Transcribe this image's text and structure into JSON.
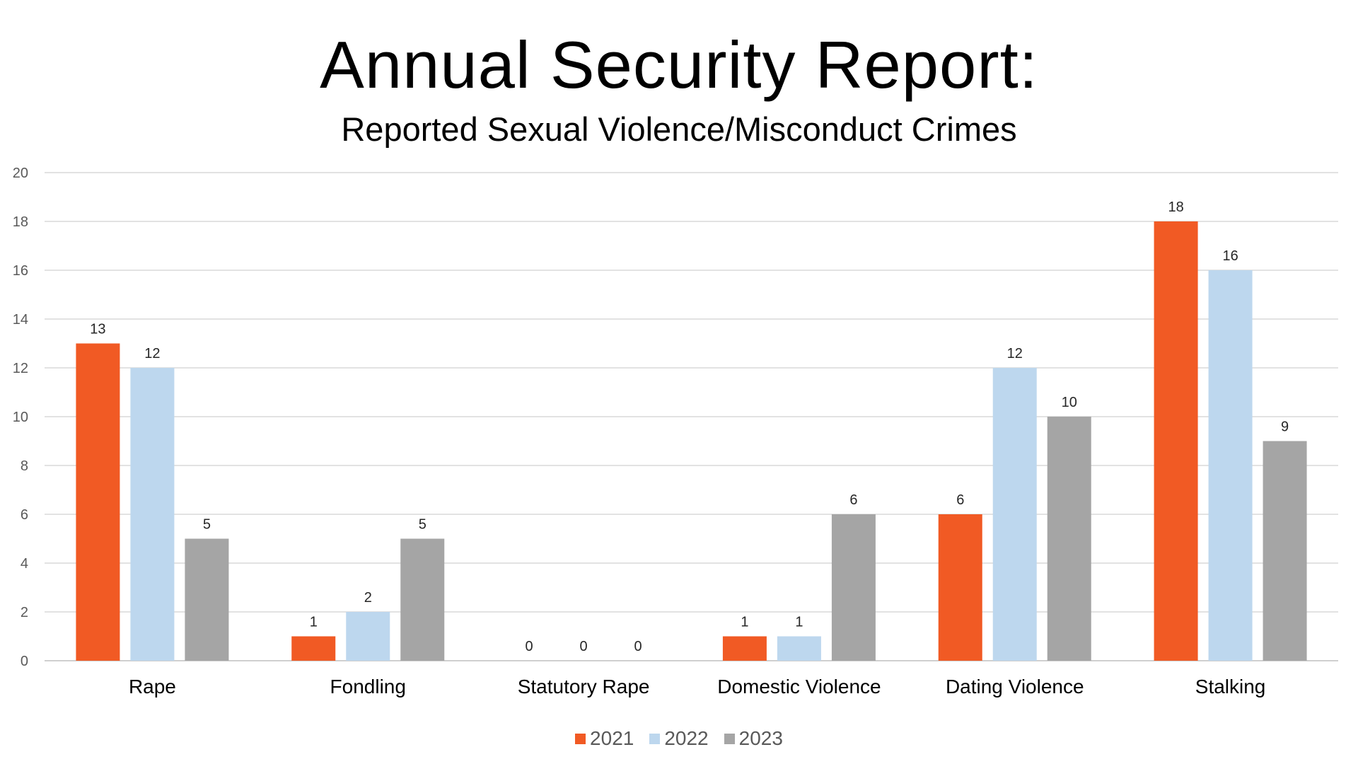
{
  "chart_data": {
    "type": "bar",
    "title": "Annual Security Report:",
    "subtitle": "Reported Sexual Violence/Misconduct Crimes",
    "categories": [
      "Rape",
      "Fondling",
      "Statutory Rape",
      "Domestic Violence",
      "Dating Violence",
      "Stalking"
    ],
    "series": [
      {
        "name": "2021",
        "color": "#F15A24",
        "values": [
          13,
          1,
          0,
          1,
          6,
          18
        ]
      },
      {
        "name": "2022",
        "color": "#BDD7EE",
        "values": [
          12,
          2,
          0,
          1,
          12,
          16
        ]
      },
      {
        "name": "2023",
        "color": "#A5A5A5",
        "values": [
          5,
          5,
          0,
          6,
          10,
          9
        ]
      }
    ],
    "ylim": [
      0,
      20
    ],
    "yticks": [
      0,
      2,
      4,
      6,
      8,
      10,
      12,
      14,
      16,
      18,
      20
    ],
    "grid": true,
    "data_labels": true,
    "legend_position": "bottom"
  }
}
